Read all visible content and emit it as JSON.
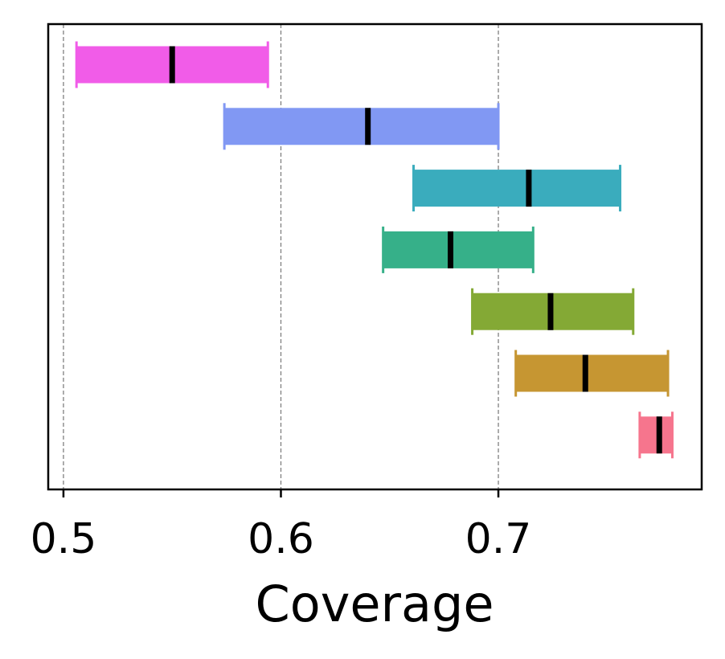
{
  "chart_data": {
    "type": "range_bar",
    "xlabel": "Coverage",
    "xlim": [
      0.493,
      0.7935
    ],
    "xticks": [
      0.5,
      0.6,
      0.7
    ],
    "xtick_labels": [
      "0.5",
      "0.6",
      "0.7"
    ],
    "grid": "vertical dashed at x ticks",
    "legend": "none",
    "rows": [
      {
        "low": 0.506,
        "high": 0.594,
        "center": 0.55,
        "color": "#f15ce8"
      },
      {
        "low": 0.574,
        "high": 0.7,
        "center": 0.64,
        "color": "#8198f3"
      },
      {
        "low": 0.661,
        "high": 0.756,
        "center": 0.714,
        "color": "#3aacbd"
      },
      {
        "low": 0.647,
        "high": 0.716,
        "center": 0.678,
        "color": "#36b089"
      },
      {
        "low": 0.688,
        "high": 0.762,
        "center": 0.724,
        "color": "#84a935"
      },
      {
        "low": 0.708,
        "high": 0.778,
        "center": 0.74,
        "color": "#c69632"
      },
      {
        "low": 0.765,
        "high": 0.78,
        "center": 0.774,
        "color": "#f6758d"
      }
    ]
  }
}
